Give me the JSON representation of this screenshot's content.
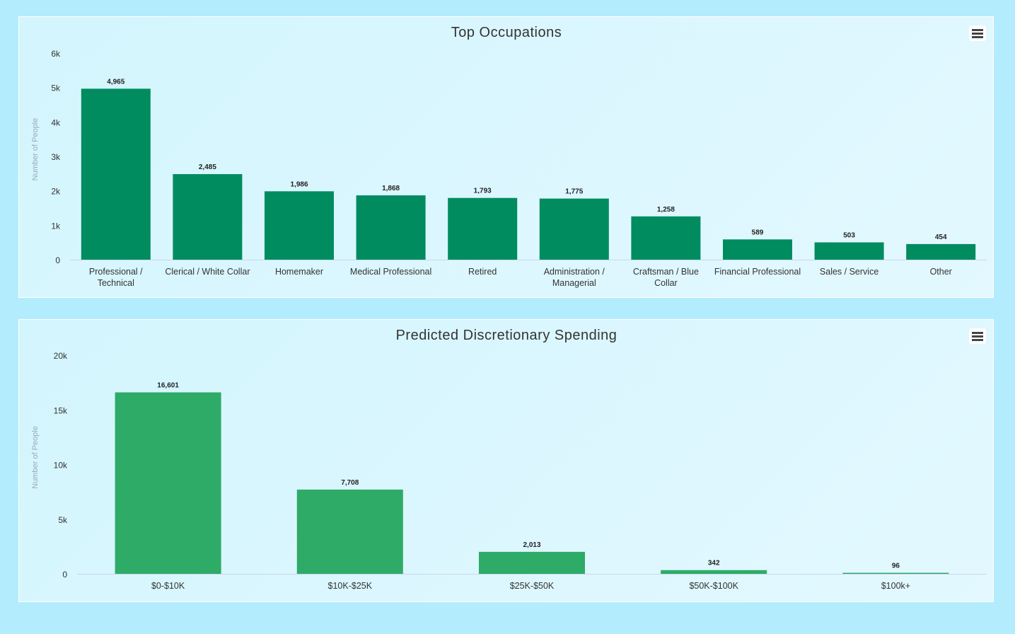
{
  "chart_data": [
    {
      "type": "bar",
      "title": "Top Occupations",
      "xlabel": "",
      "ylabel": "Number of People",
      "ylim": [
        0,
        6000
      ],
      "yticks": [
        "0",
        "1k",
        "2k",
        "3k",
        "4k",
        "5k",
        "6k"
      ],
      "categories": [
        [
          "Professional /",
          "Technical"
        ],
        [
          "Clerical / White Collar"
        ],
        [
          "Homemaker"
        ],
        [
          "Medical Professional"
        ],
        [
          "Retired"
        ],
        [
          "Administration /",
          "Managerial"
        ],
        [
          "Craftsman / Blue",
          "Collar"
        ],
        [
          "Financial Professional"
        ],
        [
          "Sales / Service"
        ],
        [
          "Other"
        ]
      ],
      "values": [
        4965,
        2485,
        1986,
        1868,
        1793,
        1775,
        1258,
        589,
        503,
        454
      ],
      "labels": [
        "4,965",
        "2,485",
        "1,986",
        "1,868",
        "1,793",
        "1,775",
        "1,258",
        "589",
        "503",
        "454"
      ],
      "color": "#008c5f",
      "legend": "none"
    },
    {
      "type": "bar",
      "title": "Predicted Discretionary Spending",
      "xlabel": "",
      "ylabel": "Number of People",
      "ylim": [
        0,
        20000
      ],
      "yticks": [
        "0",
        "5k",
        "10k",
        "15k",
        "20k"
      ],
      "categories": [
        [
          "$0-$10K"
        ],
        [
          "$10K-$25K"
        ],
        [
          "$25K-$50K"
        ],
        [
          "$50K-$100K"
        ],
        [
          "$100k+"
        ]
      ],
      "values": [
        16601,
        7708,
        2013,
        342,
        96
      ],
      "labels": [
        "16,601",
        "7,708",
        "2,013",
        "342",
        "96"
      ],
      "color": "#2eab67",
      "legend": "none"
    }
  ]
}
